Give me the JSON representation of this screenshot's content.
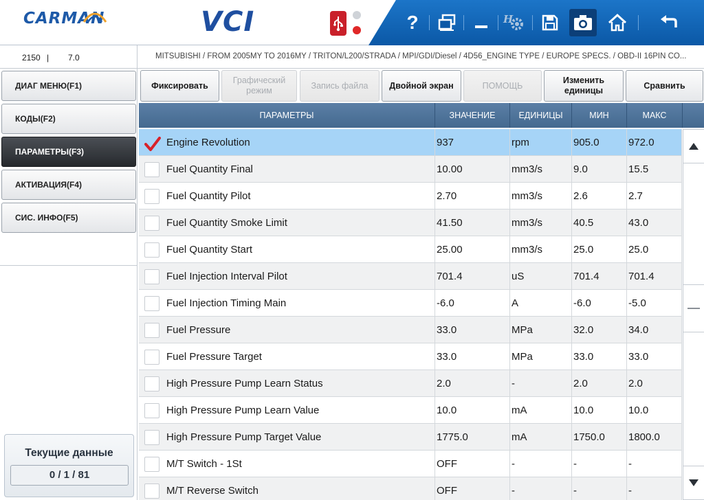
{
  "header": {
    "logo_text": "CARMAN",
    "product_text": "VCI",
    "toolbar": [
      {
        "name": "help-icon",
        "label": "?"
      },
      {
        "name": "windows-icon"
      },
      {
        "name": "minimize-icon"
      },
      {
        "name": "settings-icon"
      },
      {
        "name": "save-icon"
      },
      {
        "name": "camera-icon",
        "active": true
      },
      {
        "name": "home-icon"
      },
      {
        "name": "back-icon"
      }
    ]
  },
  "infobar": {
    "code": "2150",
    "separator": "|",
    "version": "7.0",
    "vehicle_path": "MITSUBISHI / FROM 2005MY TO 2016MY / TRITON/L200/STRADA / MPI/GDI/Diesel / 4D56_ENGINE TYPE / EUROPE SPECS. / OBD-II 16PIN CO..."
  },
  "sidebar": {
    "items": [
      {
        "label": "ДИАГ МЕНЮ(F1)",
        "active": false
      },
      {
        "label": "КОДЫ(F2)",
        "active": false
      },
      {
        "label": "ПАРАМЕТРЫ(F3)",
        "active": true
      },
      {
        "label": "АКТИВАЦИЯ(F4)",
        "active": false
      },
      {
        "label": "СИС. ИНФО(F5)",
        "active": false
      }
    ],
    "status_title": "Текущие данные",
    "status_count": "0 / 1 / 81"
  },
  "function_buttons": {
    "fix": "Фиксировать",
    "graph": "Графический режим",
    "record": "Запись файла",
    "dual": "Двойной экран",
    "help": "ПОМОЩЬ",
    "units": "Изменить единицы",
    "compare": "Сравнить"
  },
  "table": {
    "headers": {
      "param": "ПАРАМЕТРЫ",
      "value": "ЗНАЧЕНИЕ",
      "units": "ЕДИНИЦЫ",
      "min": "МИН",
      "max": "МАКС"
    },
    "rows": [
      {
        "name": "Engine Revolution",
        "value": "937",
        "unit": "rpm",
        "min": "905.0",
        "max": "972.0",
        "checked": true
      },
      {
        "name": "Fuel Quantity Final",
        "value": "10.00",
        "unit": "mm3/s",
        "min": "9.0",
        "max": "15.5",
        "checked": false
      },
      {
        "name": "Fuel Quantity Pilot",
        "value": "2.70",
        "unit": "mm3/s",
        "min": "2.6",
        "max": "2.7",
        "checked": false
      },
      {
        "name": "Fuel Quantity Smoke Limit",
        "value": "41.50",
        "unit": "mm3/s",
        "min": "40.5",
        "max": "43.0",
        "checked": false
      },
      {
        "name": "Fuel Quantity Start",
        "value": "25.00",
        "unit": "mm3/s",
        "min": "25.0",
        "max": "25.0",
        "checked": false
      },
      {
        "name": "Fuel Injection Interval Pilot",
        "value": "701.4",
        "unit": "uS",
        "min": "701.4",
        "max": "701.4",
        "checked": false
      },
      {
        "name": "Fuel Injection Timing Main",
        "value": "-6.0",
        "unit": "A",
        "min": "-6.0",
        "max": "-5.0",
        "checked": false
      },
      {
        "name": "Fuel Pressure",
        "value": "33.0",
        "unit": "MPa",
        "min": "32.0",
        "max": "34.0",
        "checked": false
      },
      {
        "name": "Fuel Pressure Target",
        "value": "33.0",
        "unit": "MPa",
        "min": "33.0",
        "max": "33.0",
        "checked": false
      },
      {
        "name": "High Pressure Pump Learn Status",
        "value": "2.0",
        "unit": "-",
        "min": "2.0",
        "max": "2.0",
        "checked": false
      },
      {
        "name": "High Pressure Pump Learn Value",
        "value": "10.0",
        "unit": "mA",
        "min": "10.0",
        "max": "10.0",
        "checked": false
      },
      {
        "name": "High Pressure Pump Target Value",
        "value": "1775.0",
        "unit": "mA",
        "min": "1750.0",
        "max": "1800.0",
        "checked": false
      },
      {
        "name": "M/T Switch - 1St",
        "value": "OFF",
        "unit": "-",
        "min": "-",
        "max": "-",
        "checked": false
      },
      {
        "name": "M/T Reverse Switch",
        "value": "OFF",
        "unit": "-",
        "min": "-",
        "max": "-",
        "checked": false
      }
    ]
  },
  "colors": {
    "brand_blue": "#1e5aa8",
    "toolbar_blue": "#0b58a6",
    "selected_row": "#a6d4f7",
    "header_bg": "#4f7499",
    "check_red": "#d8222a"
  }
}
